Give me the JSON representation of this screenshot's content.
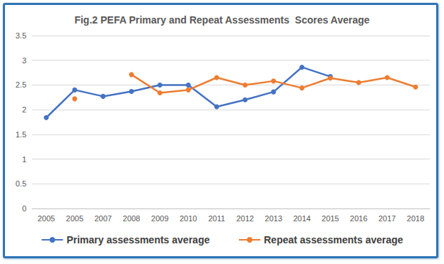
{
  "chart_data": {
    "type": "line",
    "title": "Fig.2 PEFA Primary and Repeat Assessments  Scores Average",
    "categories": [
      "2005",
      "2005",
      "2007",
      "2008",
      "2009",
      "2010",
      "2011",
      "2012",
      "2013",
      "2014",
      "2015",
      "2016",
      "2017",
      "2018"
    ],
    "series": [
      {
        "name": "Primary assessments average",
        "color": "#4472C4",
        "marker": "circle",
        "line_style": "solid",
        "values": [
          1.84,
          2.4,
          2.27,
          2.37,
          2.5,
          2.5,
          2.06,
          2.2,
          2.36,
          2.86,
          2.67,
          null,
          null,
          null
        ]
      },
      {
        "name": "Repeat assessments average",
        "color": "#ED7D31",
        "marker": "circle",
        "line_style": "solid",
        "values": [
          null,
          2.22,
          null,
          2.71,
          2.34,
          2.4,
          2.65,
          2.5,
          2.58,
          2.44,
          2.64,
          2.55,
          2.65,
          2.46
        ]
      }
    ],
    "ylim": [
      0,
      3.5
    ],
    "yticks": [
      0,
      0.5,
      1,
      1.5,
      2,
      2.5,
      3,
      3.5
    ],
    "grid": true,
    "legend": "bottom"
  }
}
